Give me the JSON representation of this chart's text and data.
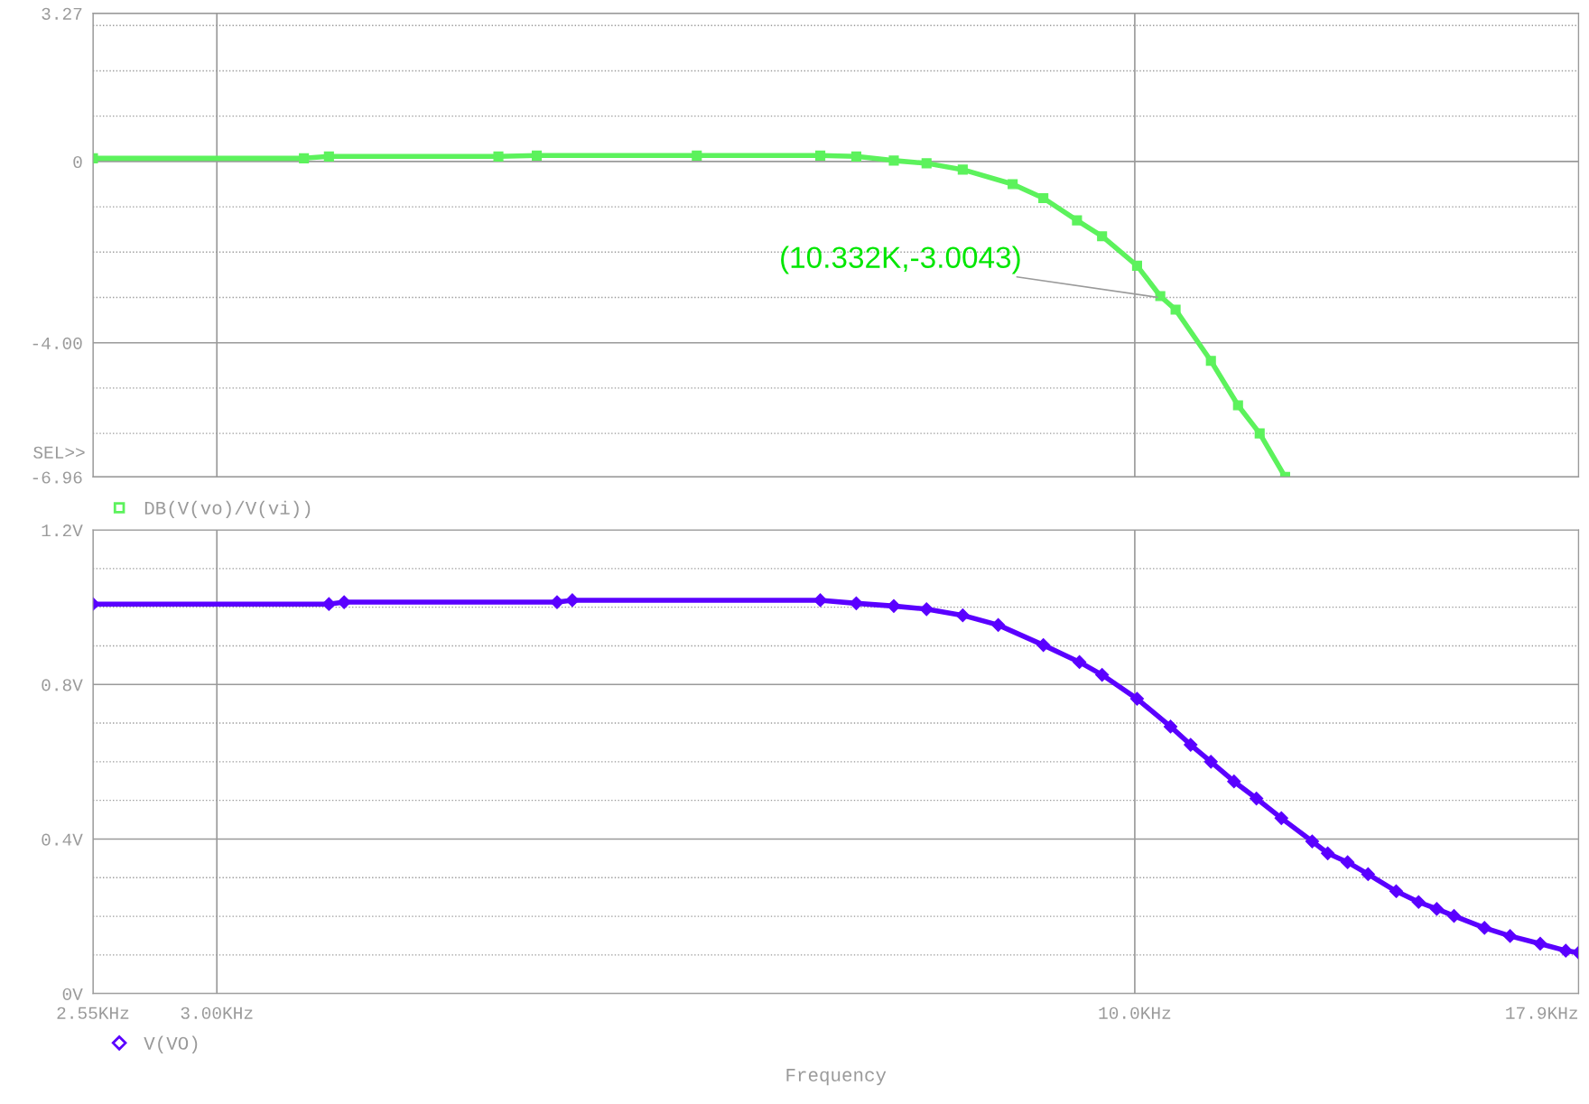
{
  "chart_data": [
    {
      "type": "line",
      "log": "x",
      "xlim": [
        2.55,
        17.9
      ],
      "ylim": [
        -6.96,
        3.27
      ],
      "tick_labels": "y",
      "grid": true,
      "legend": "bottom left",
      "marker": "square",
      "line_style": "solid",
      "xticks": [
        {
          "value": 2.55,
          "label": null
        },
        {
          "value": 3.0,
          "label": null
        },
        {
          "value": 10.0,
          "label": null
        },
        {
          "value": 17.9,
          "label": null
        }
      ],
      "yticks": [
        3.27,
        {
          "value": 3,
          "label": null
        },
        {
          "value": 2,
          "label": null
        },
        {
          "value": 1,
          "label": null
        },
        0,
        {
          "value": -1,
          "label": null
        },
        {
          "value": -2,
          "label": null
        },
        {
          "value": -3,
          "label": null
        },
        {
          "value": -4,
          "label": "-4.00"
        },
        {
          "value": -5,
          "label": null
        },
        {
          "value": -6,
          "label": null
        },
        -6.96
      ],
      "series": [
        {
          "name": "DB(V(vo)/V(vi))",
          "color": "#5cf25c",
          "x": [
            2.55,
            3.363,
            3.475,
            4.34,
            4.564,
            5.63,
            6.62,
            6.94,
            7.29,
            7.61,
            7.98,
            8.52,
            8.87,
            9.27,
            9.58,
            10.03,
            10.34,
            10.55,
            11.05,
            11.45,
            11.78,
            12.18
          ],
          "values": [
            0.07,
            0.07,
            0.11,
            0.11,
            0.13,
            0.13,
            0.13,
            0.11,
            0.02,
            -0.04,
            -0.18,
            -0.5,
            -0.81,
            -1.3,
            -1.65,
            -2.3,
            -2.97,
            -3.27,
            -4.4,
            -5.38,
            -6.0,
            -6.96
          ]
        }
      ],
      "annotations": [
        {
          "text": "(10.332K,-3.0043)",
          "x": 10.332,
          "y": -3.0043
        },
        "SEL>>"
      ]
    },
    {
      "type": "line",
      "log": "x",
      "xlim": [
        2.55,
        17.9
      ],
      "ylim": [
        0,
        1.2
      ],
      "grid": true,
      "legend": "bottom left",
      "marker": "diamond",
      "line_style": "solid",
      "xlabel": "Frequency",
      "xticks": [
        {
          "value": 2.55,
          "label": "2.55KHz"
        },
        {
          "value": 3.0,
          "label": "3.00KHz"
        },
        {
          "value": 10.0,
          "label": "10.0KHz"
        },
        {
          "value": 17.9,
          "label": "17.9KHz"
        }
      ],
      "yticks": [
        {
          "value": 0,
          "label": "0V"
        },
        {
          "value": 0.1,
          "label": null
        },
        {
          "value": 0.2,
          "label": null
        },
        {
          "value": 0.3,
          "label": null
        },
        {
          "value": 0.4,
          "label": "0.4V"
        },
        {
          "value": 0.5,
          "label": null
        },
        {
          "value": 0.6,
          "label": null
        },
        {
          "value": 0.7,
          "label": null
        },
        {
          "value": 0.8,
          "label": "0.8V"
        },
        {
          "value": 0.9,
          "label": null
        },
        {
          "value": 1.0,
          "label": null
        },
        {
          "value": 1.1,
          "label": null
        },
        {
          "value": 1.2,
          "label": "1.2V"
        }
      ],
      "series": [
        {
          "name": "V(VO)",
          "color": "#5a00ff",
          "x": [
            2.55,
            3.475,
            3.545,
            4.687,
            4.782,
            6.62,
            6.94,
            7.29,
            7.61,
            7.98,
            8.36,
            8.87,
            9.3,
            9.58,
            10.03,
            10.48,
            10.76,
            11.05,
            11.39,
            11.73,
            12.12,
            12.62,
            12.88,
            13.22,
            13.58,
            14.09,
            14.51,
            14.86,
            15.2,
            15.82,
            16.36,
            17.02,
            17.6,
            17.9
          ],
          "values": [
            1.008,
            1.008,
            1.013,
            1.013,
            1.018,
            1.018,
            1.01,
            1.003,
            0.995,
            0.979,
            0.954,
            0.902,
            0.858,
            0.825,
            0.763,
            0.691,
            0.644,
            0.6,
            0.549,
            0.505,
            0.454,
            0.394,
            0.363,
            0.34,
            0.309,
            0.265,
            0.237,
            0.219,
            0.201,
            0.17,
            0.149,
            0.129,
            0.111,
            0.106
          ]
        }
      ]
    }
  ]
}
